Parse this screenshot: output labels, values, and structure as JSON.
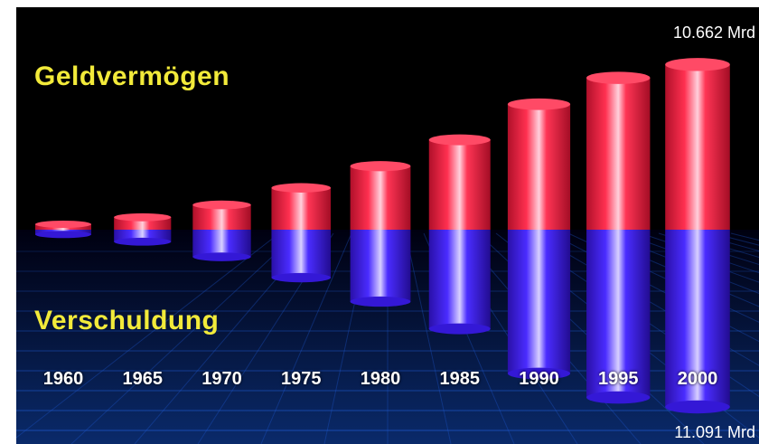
{
  "chart_data": {
    "type": "bar",
    "title_top": "Geldvermögen",
    "title_bottom": "Verschuldung",
    "categories": [
      "1960",
      "1965",
      "1970",
      "1975",
      "1980",
      "1985",
      "1990",
      "1995",
      "2000"
    ],
    "series": [
      {
        "name": "Geldvermögen",
        "color": "#ff2a4a",
        "values": [
          350,
          800,
          1600,
          2700,
          4100,
          5800,
          8100,
          9800,
          10662
        ]
      },
      {
        "name": "Verschuldung",
        "color": "#3a1ee8",
        "values": [
          300,
          750,
          1700,
          3000,
          4500,
          6200,
          9000,
          10500,
          11091
        ]
      }
    ],
    "annotations": {
      "top_value": "10.662 Mrd",
      "bottom_value": "11.091 Mrd"
    },
    "ylim": [
      0,
      11091
    ]
  }
}
